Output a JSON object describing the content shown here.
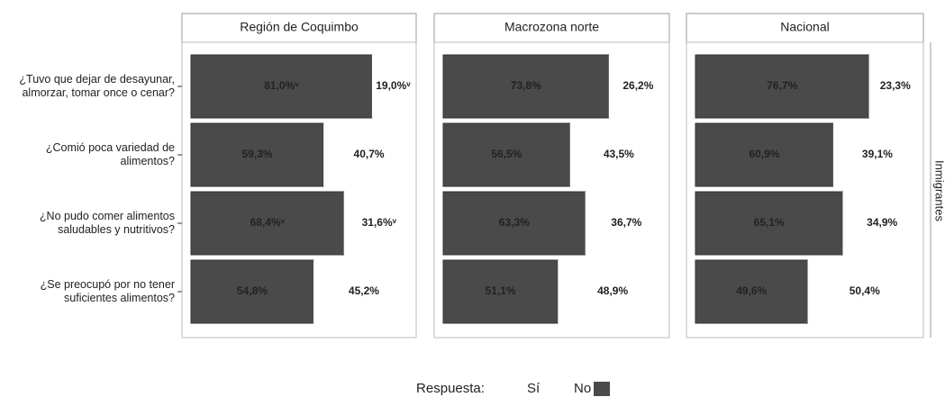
{
  "chart_data": {
    "type": "bar",
    "orientation": "horizontal",
    "stacked": true,
    "categories": [
      [
        "¿Tuvo que dejar de desayunar,",
        "almorzar, tomar once o cenar?"
      ],
      [
        "¿Comió poca variedad de",
        "alimentos?"
      ],
      [
        "¿No pudo comer alimentos",
        "saludables y nutritivos?"
      ],
      [
        "¿Se preocupó por no tener",
        "suficientes alimentos?"
      ]
    ],
    "xlim": [
      0,
      100
    ],
    "legend_title": "Respuesta:",
    "facet_label": "Inmigrantes",
    "series": [
      {
        "name": "Sí",
        "color": "#ffffff"
      },
      {
        "name": "No",
        "color": "#4a4a4a"
      }
    ],
    "panels": [
      {
        "title": "Región de Coquimbo",
        "values": [
          [
            19.0,
            40.7,
            31.6,
            45.2
          ],
          [
            81.0,
            59.3,
            68.4,
            54.8
          ]
        ],
        "value_labels": [
          [
            "19,0%ᵛ",
            "40,7%",
            "31,6%ᵛ",
            "45,2%"
          ],
          [
            "81,0%ᵛ",
            "59,3%",
            "68,4%ᵛ",
            "54,8%"
          ]
        ]
      },
      {
        "title": "Macrozona norte",
        "values": [
          [
            26.2,
            43.5,
            36.7,
            48.9
          ],
          [
            73.8,
            56.5,
            63.3,
            51.1
          ]
        ],
        "value_labels": [
          [
            "26,2%",
            "43,5%",
            "36,7%",
            "48,9%"
          ],
          [
            "73,8%",
            "56,5%",
            "63,3%",
            "51,1%"
          ]
        ]
      },
      {
        "title": "Nacional",
        "values": [
          [
            23.3,
            39.1,
            34.9,
            50.4
          ],
          [
            76.7,
            60.9,
            65.1,
            49.6
          ]
        ],
        "value_labels": [
          [
            "23,3%",
            "39,1%",
            "34,9%",
            "50,4%"
          ],
          [
            "76,7%",
            "60,9%",
            "65,1%",
            "49,6%"
          ]
        ]
      }
    ]
  }
}
